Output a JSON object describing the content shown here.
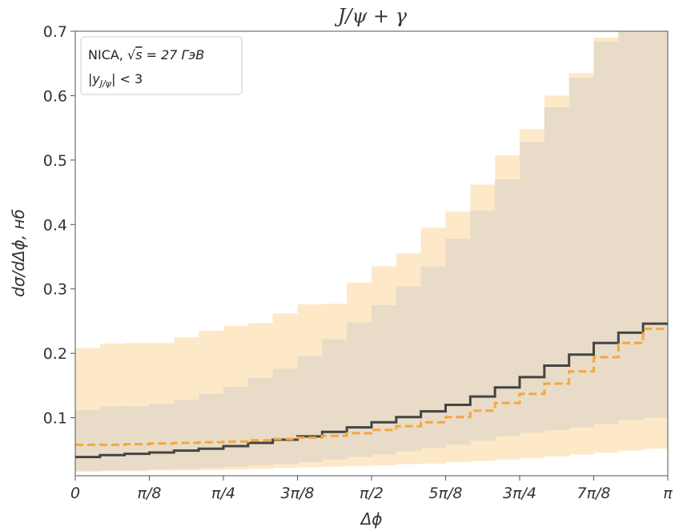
{
  "chart_data": {
    "type": "step",
    "title": "J/ψ + γ",
    "xlabel": "Δϕ",
    "ylabel": "dσ/dΔϕ, нб",
    "xlim": [
      0,
      3.14159265
    ],
    "ylim": [
      0.01,
      0.7
    ],
    "x_ticks": [
      {
        "value": 0,
        "label": "0"
      },
      {
        "value": 0.3927,
        "label": "π/8"
      },
      {
        "value": 0.7854,
        "label": "π/4"
      },
      {
        "value": 1.1781,
        "label": "3π/8"
      },
      {
        "value": 1.5708,
        "label": "π/2"
      },
      {
        "value": 1.9635,
        "label": "5π/8"
      },
      {
        "value": 2.3562,
        "label": "3π/4"
      },
      {
        "value": 2.7489,
        "label": "7π/8"
      },
      {
        "value": 3.1416,
        "label": "π"
      }
    ],
    "y_ticks": [
      {
        "value": 0.1,
        "label": "0.1"
      },
      {
        "value": 0.2,
        "label": "0.2"
      },
      {
        "value": 0.3,
        "label": "0.3"
      },
      {
        "value": 0.4,
        "label": "0.4"
      },
      {
        "value": 0.5,
        "label": "0.5"
      },
      {
        "value": 0.6,
        "label": "0.6"
      },
      {
        "value": 0.7,
        "label": "0.7"
      }
    ],
    "annotation": {
      "line1_prefix": "NICA, ",
      "sqrt_symbol": "√",
      "sqrt_arg": "s",
      "line1_suffix": " = 27 ГэВ",
      "line2_prefix": "|y",
      "line2_sub": "J/ψ",
      "line2_suffix": "| < 3"
    },
    "bin_edges": [
      0,
      0.1309,
      0.2618,
      0.3927,
      0.5236,
      0.6545,
      0.7854,
      0.9163,
      1.0472,
      1.1781,
      1.309,
      1.4399,
      1.5708,
      1.7017,
      1.8326,
      1.9635,
      2.0944,
      2.2253,
      2.3562,
      2.4871,
      2.618,
      2.7489,
      2.8798,
      3.0107,
      3.1416
    ],
    "series": [
      {
        "kind": "band",
        "color": "#fde9c8",
        "lower": [
          0.016,
          0.017,
          0.017,
          0.018,
          0.018,
          0.019,
          0.02,
          0.021,
          0.022,
          0.023,
          0.024,
          0.025,
          0.026,
          0.028,
          0.029,
          0.031,
          0.033,
          0.035,
          0.037,
          0.04,
          0.043,
          0.046,
          0.049,
          0.052
        ],
        "upper": [
          0.208,
          0.215,
          0.216,
          0.216,
          0.225,
          0.235,
          0.243,
          0.247,
          0.262,
          0.276,
          0.277,
          0.31,
          0.335,
          0.355,
          0.395,
          0.42,
          0.462,
          0.507,
          0.548,
          0.6,
          0.635,
          0.69,
          0.7,
          0.7
        ]
      },
      {
        "kind": "band",
        "color": "#e8dcc8",
        "lower": [
          0.018,
          0.018,
          0.019,
          0.02,
          0.021,
          0.022,
          0.024,
          0.026,
          0.028,
          0.031,
          0.035,
          0.039,
          0.043,
          0.048,
          0.053,
          0.058,
          0.064,
          0.071,
          0.077,
          0.081,
          0.085,
          0.09,
          0.096,
          0.1
        ],
        "upper": [
          0.112,
          0.118,
          0.118,
          0.122,
          0.128,
          0.137,
          0.148,
          0.162,
          0.176,
          0.196,
          0.222,
          0.248,
          0.275,
          0.304,
          0.335,
          0.378,
          0.422,
          0.47,
          0.528,
          0.582,
          0.628,
          0.684,
          0.7,
          0.7
        ]
      },
      {
        "kind": "step",
        "color": "#444444",
        "style": "solid",
        "values": [
          0.039,
          0.042,
          0.044,
          0.046,
          0.049,
          0.052,
          0.056,
          0.061,
          0.066,
          0.071,
          0.078,
          0.085,
          0.093,
          0.101,
          0.11,
          0.12,
          0.133,
          0.147,
          0.163,
          0.181,
          0.198,
          0.216,
          0.232,
          0.246
        ]
      },
      {
        "kind": "step",
        "color": "#f5a640",
        "style": "dashed",
        "values": [
          0.058,
          0.058,
          0.059,
          0.06,
          0.061,
          0.062,
          0.063,
          0.065,
          0.067,
          0.069,
          0.072,
          0.076,
          0.081,
          0.087,
          0.093,
          0.101,
          0.111,
          0.123,
          0.137,
          0.153,
          0.172,
          0.194,
          0.216,
          0.238
        ]
      }
    ]
  }
}
